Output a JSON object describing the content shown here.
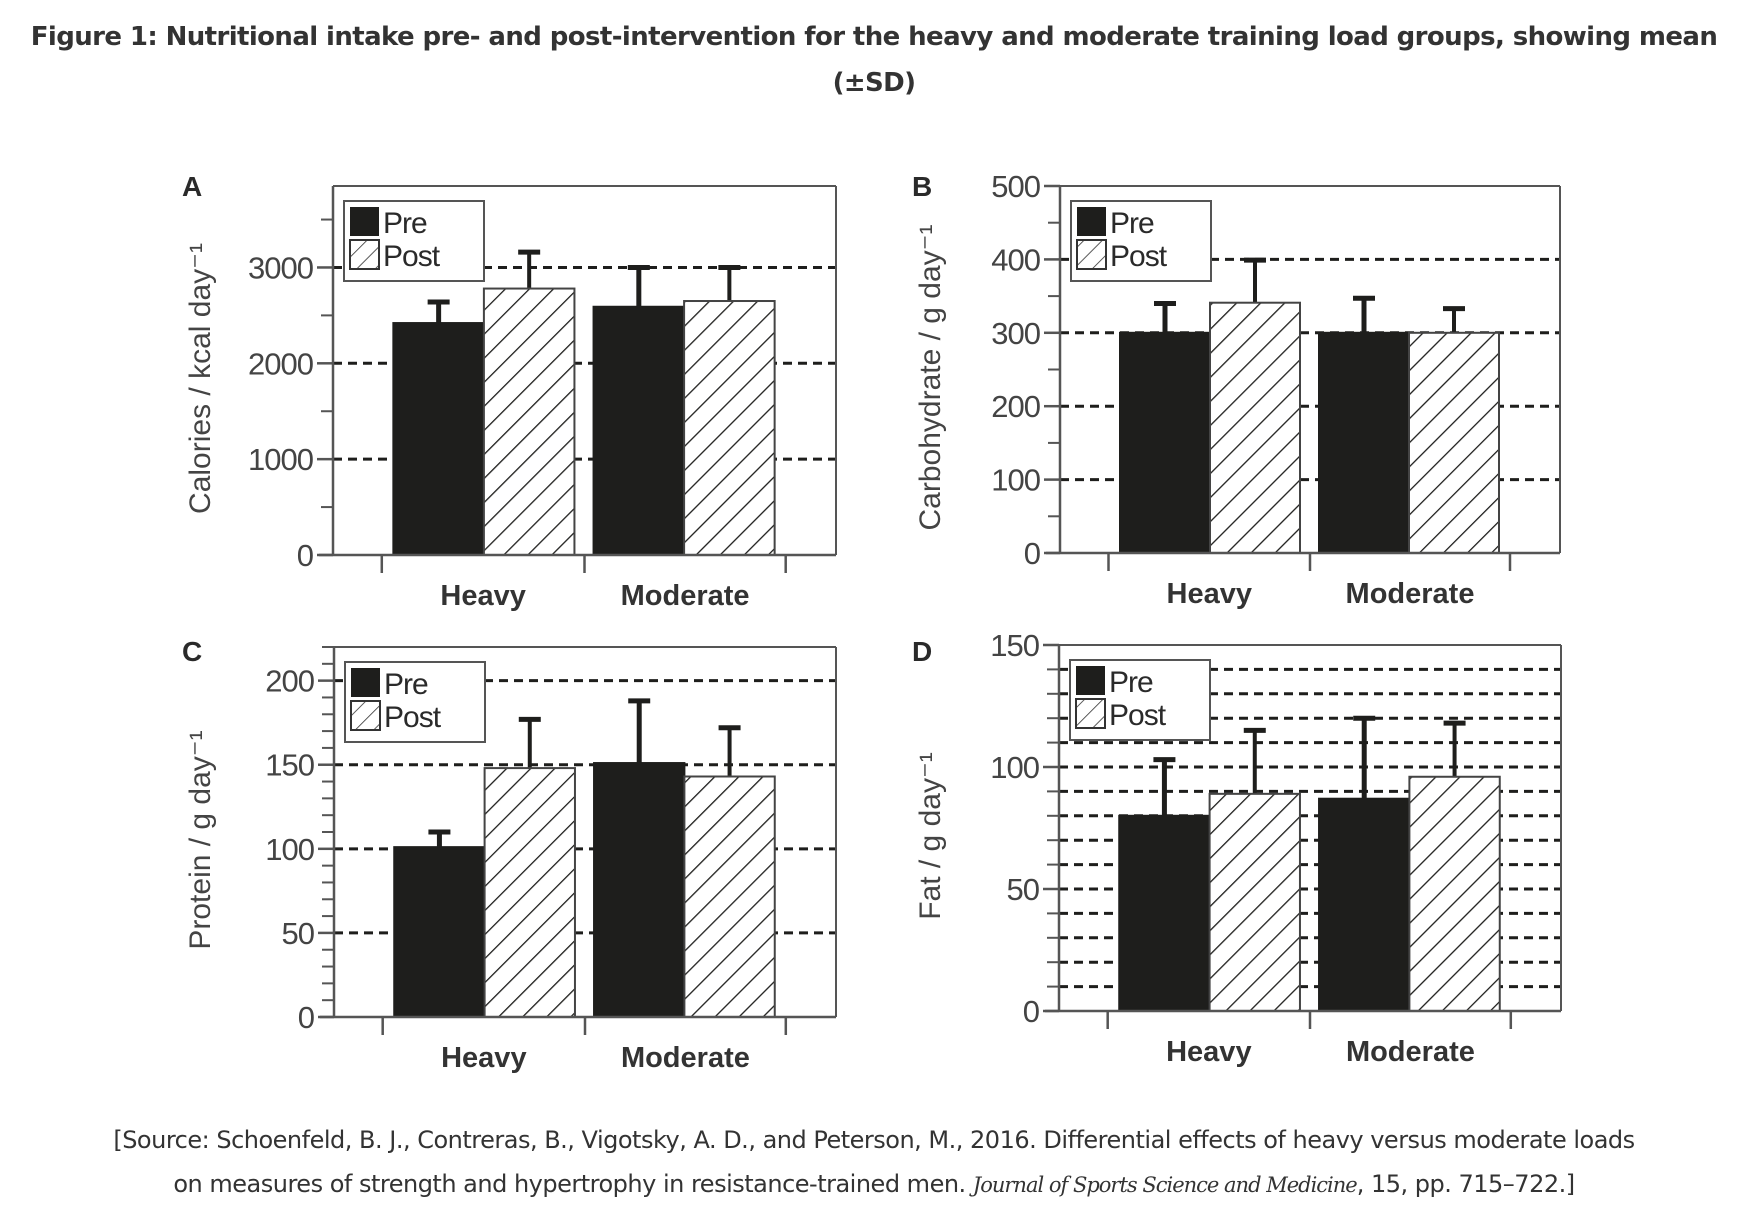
{
  "figure": {
    "title_line1": "Figure 1: Nutritional intake pre- and post-intervention for the heavy and moderate training load groups, showing mean",
    "title_line2": "(±SD)",
    "source_line1": "[Source: Schoenfeld, B. J., Contreras, B., Vigotsky, A. D., and Peterson, M., 2016. Differential effects of heavy versus moderate loads",
    "source_line2_pre": "on measures of strength and hypertrophy in resistance-trained men. ",
    "source_journal": "Journal of Sports Science and Medicine",
    "source_line2_post": ", 15, pp. 715–722.]"
  },
  "legend": {
    "entries": [
      {
        "name": "Pre",
        "fill": "solid",
        "color": "#1e1e1c"
      },
      {
        "name": "Post",
        "fill": "hatched",
        "color": "#1e1e1c"
      }
    ],
    "placement": "top-left"
  },
  "chart_data": [
    {
      "panel": "A",
      "type": "bar",
      "title": "",
      "xlabel": "",
      "ylabel": "Calories / kcal day⁻¹",
      "categories": [
        "Heavy",
        "Moderate"
      ],
      "series": [
        {
          "name": "Pre",
          "values": [
            2420,
            2590
          ],
          "sd": [
            220,
            410
          ]
        },
        {
          "name": "Post",
          "values": [
            2780,
            2650
          ],
          "sd": [
            380,
            350
          ]
        }
      ],
      "ylim": [
        0,
        3850
      ],
      "yticks": [
        0,
        1000,
        2000,
        3000
      ],
      "ytick_labels": [
        "0",
        "1000",
        "2000",
        "3000"
      ],
      "minor_step": 500,
      "gridlines": [
        1000,
        2000,
        3000
      ],
      "grid": true,
      "legend": "top-left"
    },
    {
      "panel": "B",
      "type": "bar",
      "title": "",
      "xlabel": "",
      "ylabel": "Carbohydrate / g day⁻¹",
      "categories": [
        "Heavy",
        "Moderate"
      ],
      "series": [
        {
          "name": "Pre",
          "values": [
            300,
            300
          ],
          "sd": [
            40,
            47
          ]
        },
        {
          "name": "Post",
          "values": [
            341,
            300
          ],
          "sd": [
            58,
            33
          ]
        }
      ],
      "ylim": [
        0,
        500
      ],
      "yticks": [
        0,
        100,
        200,
        300,
        400,
        500
      ],
      "ytick_labels": [
        "0",
        "100",
        "200",
        "300",
        "400",
        "500"
      ],
      "minor_step": 50,
      "gridlines": [
        100,
        200,
        300,
        400
      ],
      "grid": true,
      "legend": "top-left"
    },
    {
      "panel": "C",
      "type": "bar",
      "title": "",
      "xlabel": "",
      "ylabel": "Protein / g day⁻¹",
      "categories": [
        "Heavy",
        "Moderate"
      ],
      "series": [
        {
          "name": "Pre",
          "values": [
            101,
            151
          ],
          "sd": [
            9,
            37
          ]
        },
        {
          "name": "Post",
          "values": [
            148,
            143
          ],
          "sd": [
            29,
            29
          ]
        }
      ],
      "ylim": [
        0,
        220
      ],
      "yticks": [
        0,
        50,
        100,
        150,
        200
      ],
      "ytick_labels": [
        "0",
        "50",
        "100",
        "150",
        "200"
      ],
      "minor_step": 10,
      "gridlines": [
        50,
        100,
        150,
        200
      ],
      "grid": true,
      "legend": "top-left"
    },
    {
      "panel": "D",
      "type": "bar",
      "title": "",
      "xlabel": "",
      "ylabel": "Fat / g day⁻¹",
      "categories": [
        "Heavy",
        "Moderate"
      ],
      "series": [
        {
          "name": "Pre",
          "values": [
            80,
            87
          ],
          "sd": [
            23,
            33
          ]
        },
        {
          "name": "Post",
          "values": [
            89,
            96
          ],
          "sd": [
            26,
            22
          ]
        }
      ],
      "ylim": [
        0,
        150
      ],
      "yticks": [
        0,
        50,
        100,
        150
      ],
      "ytick_labels": [
        "0",
        "50",
        "100",
        "150"
      ],
      "minor_step": 10,
      "gridlines": [
        10,
        20,
        30,
        40,
        50,
        60,
        70,
        80,
        90,
        100,
        110,
        120,
        130,
        140
      ],
      "grid": true,
      "legend": "top-left"
    }
  ]
}
